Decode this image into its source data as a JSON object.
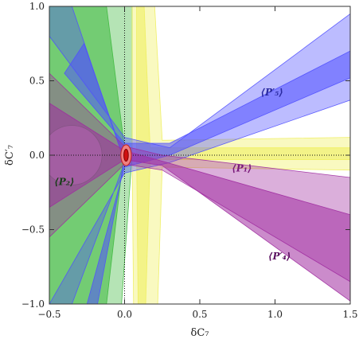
{
  "chart_data": {
    "type": "contour",
    "title": "",
    "xlabel": "δC₇",
    "ylabel": "δC′₇",
    "xlim": [
      -0.5,
      1.5
    ],
    "ylim": [
      -1.0,
      1.0
    ],
    "x_ticks": [
      {
        "v": -0.5,
        "label": "−0.5"
      },
      {
        "v": 0.0,
        "label": "0.0"
      },
      {
        "v": 0.5,
        "label": "0.5"
      },
      {
        "v": 1.0,
        "label": "1.0"
      },
      {
        "v": 1.5,
        "label": "1.5"
      }
    ],
    "y_ticks": [
      {
        "v": -1.0,
        "label": "−1.0"
      },
      {
        "v": -0.5,
        "label": "−0.5"
      },
      {
        "v": 0.0,
        "label": "0.0"
      },
      {
        "v": 0.5,
        "label": "0.5"
      },
      {
        "v": 1.0,
        "label": "1.0"
      }
    ],
    "reference_lines": {
      "x": 0.0,
      "y": 0.0,
      "style": "dotted"
    },
    "regions": [
      {
        "name": "⟨P₂⟩",
        "color": "#3cb83c",
        "label_pos": [
          -0.4,
          -0.2
        ],
        "outer": [
          [
            -0.5,
            1.0
          ],
          [
            0.05,
            1.0
          ],
          [
            0.05,
            0.0
          ],
          [
            -0.02,
            -1.0
          ],
          [
            -0.5,
            -1.0
          ]
        ],
        "inner": [
          [
            -0.5,
            1.0
          ],
          [
            -0.12,
            1.0
          ],
          [
            0.0,
            0.05
          ],
          [
            -0.12,
            -1.0
          ],
          [
            -0.5,
            -1.0
          ]
        ],
        "circle": {
          "cx": -0.35,
          "cy": 0.0,
          "r": 0.2
        }
      },
      {
        "name": "⟨P₁⟩",
        "color": "#eeee5a",
        "label_pos": [
          0.78,
          -0.11
        ],
        "outer": [
          [
            0.05,
            1.0
          ],
          [
            0.2,
            1.0
          ],
          [
            0.25,
            0.1
          ],
          [
            1.5,
            0.12
          ],
          [
            1.5,
            -0.1
          ],
          [
            0.25,
            -0.08
          ],
          [
            0.22,
            -1.0
          ],
          [
            0.06,
            -1.0
          ],
          [
            0.05,
            0.0
          ]
        ],
        "inner": [
          [
            0.08,
            1.0
          ],
          [
            0.13,
            1.0
          ],
          [
            0.17,
            0.05
          ],
          [
            1.5,
            0.05
          ],
          [
            1.5,
            -0.03
          ],
          [
            0.17,
            -0.03
          ],
          [
            0.14,
            -1.0
          ],
          [
            0.09,
            -1.0
          ],
          [
            0.08,
            0.0
          ]
        ]
      },
      {
        "name": "⟨P′₅⟩",
        "color": "#5050ff",
        "label_pos": [
          0.98,
          0.4
        ],
        "outer": [
          [
            -0.5,
            0.8
          ],
          [
            0.0,
            0.12
          ],
          [
            0.3,
            0.05
          ],
          [
            1.5,
            0.95
          ],
          [
            1.5,
            0.37
          ],
          [
            0.3,
            -0.05
          ],
          [
            0.0,
            -0.12
          ],
          [
            -0.5,
            -1.0
          ],
          [
            -0.35,
            -1.0
          ],
          [
            0.0,
            -0.05
          ],
          [
            -0.35,
            1.0
          ],
          [
            -0.5,
            1.0
          ]
        ],
        "inner": [
          [
            -0.4,
            0.55
          ],
          [
            0.0,
            0.08
          ],
          [
            0.3,
            0.08
          ],
          [
            1.5,
            0.7
          ],
          [
            1.5,
            0.52
          ],
          [
            0.3,
            0.0
          ],
          [
            0.0,
            -0.08
          ],
          [
            -0.25,
            -1.0
          ],
          [
            -0.18,
            -1.0
          ],
          [
            0.0,
            -0.03
          ],
          [
            -0.27,
            0.75
          ]
        ]
      },
      {
        "name": "⟨P′₄⟩",
        "color": "#a02ca0",
        "label_pos": [
          1.03,
          -0.7
        ],
        "outer": [
          [
            -0.5,
            0.55
          ],
          [
            0.0,
            0.06
          ],
          [
            0.25,
            0.0
          ],
          [
            1.5,
            -0.15
          ],
          [
            1.5,
            -0.85
          ],
          [
            0.25,
            -0.1
          ],
          [
            0.0,
            -0.06
          ],
          [
            -0.5,
            -0.55
          ]
        ],
        "inner": [
          [
            -0.5,
            0.35
          ],
          [
            0.0,
            0.03
          ],
          [
            0.25,
            -0.04
          ],
          [
            1.5,
            -0.4
          ],
          [
            1.5,
            -0.98
          ],
          [
            0.25,
            -0.07
          ],
          [
            0.0,
            -0.03
          ],
          [
            -0.5,
            -0.35
          ]
        ]
      }
    ],
    "best_fit": {
      "x": 0.01,
      "y": 0.0,
      "sigma1": [
        0.015,
        0.04
      ],
      "sigma2": [
        0.035,
        0.07
      ]
    }
  }
}
